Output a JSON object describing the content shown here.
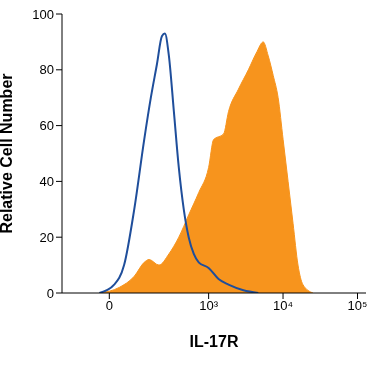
{
  "chart_data": {
    "type": "line",
    "x_label": "IL-17R",
    "y_label": "Relative Cell Number",
    "xlim": [
      -190,
      130000
    ],
    "xticks": [
      0,
      {
        "value": 1000,
        "label": "10³"
      },
      {
        "value": 10000,
        "label": "10⁴"
      },
      {
        "value": 100000,
        "label": "10⁵"
      }
    ],
    "ylim": [
      0,
      100
    ],
    "yticks": [
      0,
      20,
      40,
      60,
      80,
      100
    ],
    "grid": false,
    "series": [
      {
        "type": "area",
        "color": "#f7941d",
        "x": [
          -29,
          29,
          79,
          121,
          145,
          206,
          286,
          393,
          537,
          735,
          1000,
          1167,
          1590,
          1851,
          2511,
          3422,
          4371,
          5422,
          6324,
          7375,
          8593,
          10025,
          11690,
          13625,
          15884,
          18507,
          25203
        ],
        "values": [
          0,
          2,
          6,
          11,
          12,
          10,
          14,
          20,
          28,
          36,
          45,
          55,
          57,
          65,
          73,
          80,
          86,
          90,
          85,
          78,
          70,
          55,
          40,
          25,
          10,
          3,
          0
        ]
      },
      {
        "type": "line",
        "color": "#1f4e9b",
        "x": [
          -29,
          14,
          44,
          79,
          121,
          155,
          192,
          227,
          251,
          286,
          336,
          393,
          460,
          537,
          630,
          735,
          1000,
          1361,
          1851,
          2939,
          4650
        ],
        "values": [
          0,
          3,
          10,
          30,
          55,
          70,
          82,
          92,
          93,
          85,
          65,
          45,
          30,
          20,
          14,
          11,
          9,
          5,
          3,
          1,
          0
        ]
      }
    ]
  }
}
